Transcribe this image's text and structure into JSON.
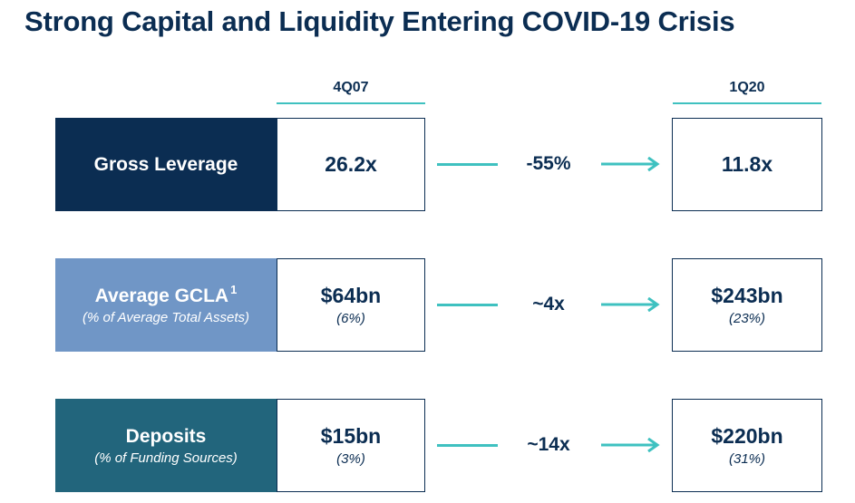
{
  "title": "Strong Capital and Liquidity Entering COVID-19 Crisis",
  "columns": {
    "left": "4Q07",
    "right": "1Q20"
  },
  "colors": {
    "navy": "#0b2d52",
    "slate_blue": "#7096c6",
    "teal": "#22657c",
    "accent": "#3fc1c0"
  },
  "rows": [
    {
      "label": "Gross Leverage",
      "label_sub": "",
      "footnote": "",
      "left_value": "26.2x",
      "left_sub": "",
      "change": "-55%",
      "right_value": "11.8x",
      "right_sub": ""
    },
    {
      "label": "Average GCLA",
      "label_sub": "(% of Average Total Assets)",
      "footnote": "1",
      "left_value": "$64bn",
      "left_sub": "(6%)",
      "change": "~4x",
      "right_value": "$243bn",
      "right_sub": "(23%)"
    },
    {
      "label": "Deposits",
      "label_sub": "(% of Funding Sources)",
      "footnote": "",
      "left_value": "$15bn",
      "left_sub": "(3%)",
      "change": "~14x",
      "right_value": "$220bn",
      "right_sub": "(31%)"
    }
  ]
}
